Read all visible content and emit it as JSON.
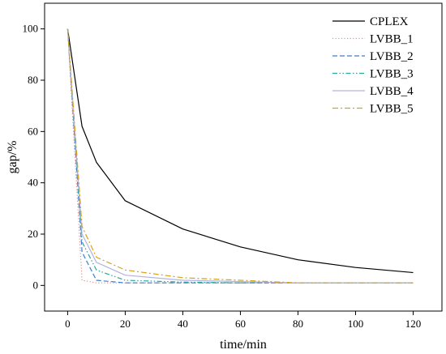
{
  "chart_data": {
    "type": "line",
    "xlabel": "time/min",
    "ylabel": "gap/%",
    "xlim": [
      -8,
      130
    ],
    "ylim": [
      -10,
      110
    ],
    "xticks": [
      0,
      20,
      40,
      60,
      80,
      100,
      120
    ],
    "yticks": [
      0,
      20,
      40,
      60,
      80,
      100
    ],
    "grid": false,
    "legend_position": "top-right",
    "series": [
      {
        "name": "CPLEX",
        "color": "#000000",
        "dash": "solid",
        "x": [
          0,
          5,
          10,
          20,
          40,
          60,
          80,
          100,
          120
        ],
        "y": [
          100,
          62,
          48,
          33,
          22,
          15,
          10,
          7,
          5
        ]
      },
      {
        "name": "LVBB_1",
        "color": "#e8898f",
        "dash": "dotted",
        "x": [
          0,
          5,
          10,
          20,
          40,
          60,
          80,
          100,
          120
        ],
        "y": [
          100,
          2,
          1,
          1,
          1,
          1,
          1,
          1,
          1
        ]
      },
      {
        "name": "LVBB_2",
        "color": "#3d7fc9",
        "dash": "dashed",
        "x": [
          0,
          5,
          10,
          20,
          40,
          60,
          80,
          100,
          120
        ],
        "y": [
          100,
          13,
          2,
          1,
          1,
          1,
          1,
          1,
          1
        ]
      },
      {
        "name": "LVBB_3",
        "color": "#2aa79b",
        "dash": "dash-dot-dot",
        "x": [
          0,
          5,
          10,
          20,
          40,
          60,
          80,
          100,
          120
        ],
        "y": [
          100,
          17,
          6,
          2,
          1.3,
          1,
          1,
          1,
          1
        ]
      },
      {
        "name": "LVBB_4",
        "color": "#b3b3e3",
        "dash": "solid",
        "x": [
          0,
          5,
          10,
          20,
          40,
          60,
          80,
          100,
          120
        ],
        "y": [
          100,
          20,
          9,
          4,
          2,
          1.5,
          1,
          1,
          1
        ]
      },
      {
        "name": "LVBB_5",
        "color": "#d6a21c",
        "dash": "dash-dot",
        "x": [
          0,
          5,
          10,
          20,
          40,
          60,
          80,
          100,
          120
        ],
        "y": [
          100,
          23,
          11,
          6,
          3,
          2,
          1,
          1,
          1
        ]
      }
    ]
  }
}
